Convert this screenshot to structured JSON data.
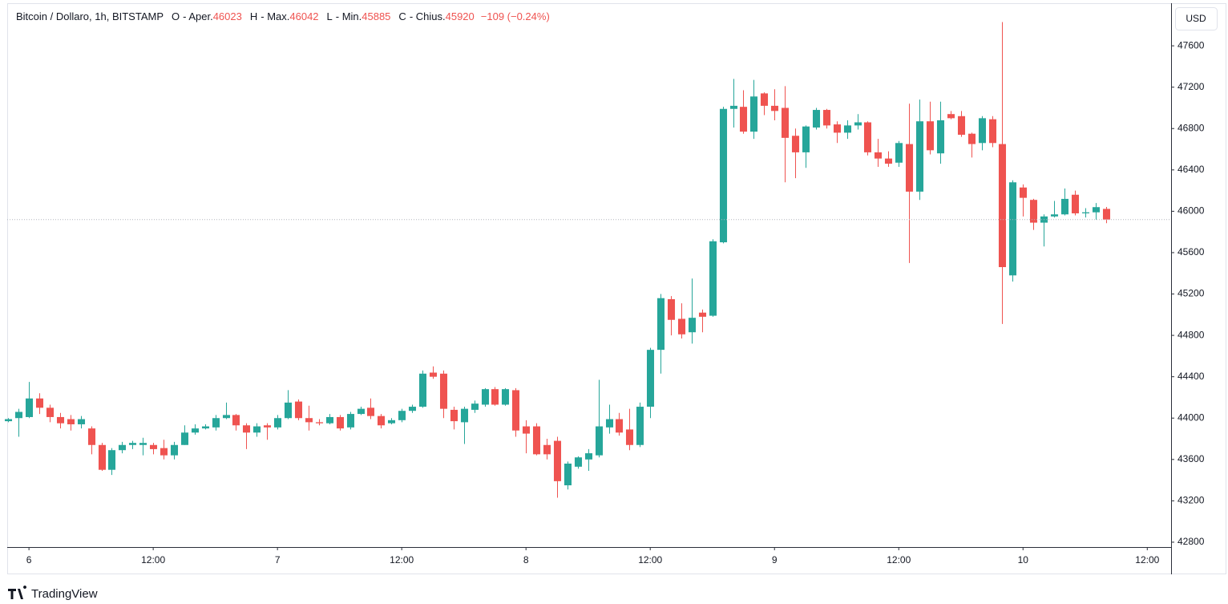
{
  "chart_data": {
    "type": "candlestick",
    "title": "Bitcoin / Dollaro, 1h, BITSTAMP",
    "ohlc_labels": {
      "o": "O",
      "open": "- Aper.",
      "h": "H",
      "high": "- Max.",
      "l": "L",
      "low": "- Min.",
      "c": "C",
      "close": "- Chius."
    },
    "change": "−109 (−0.24%)",
    "currency": "USD",
    "up_color": "#26a69a",
    "down_color": "#ef5350",
    "last_price_line": true,
    "open": [
      43970,
      44000,
      44010,
      44190,
      44100,
      44010,
      43990,
      43940,
      43900,
      43740,
      43500,
      43690,
      43740,
      43740,
      43740,
      43710,
      43640,
      43740,
      43860,
      43900,
      43910,
      44000,
      44030,
      43930,
      43860,
      43930,
      43910,
      44000,
      44160,
      44000,
      43960,
      43950,
      44010,
      43910,
      44040,
      44100,
      44020,
      43950,
      43980,
      44070,
      44110,
      44440,
      44430,
      44080,
      43960,
      44080,
      44130,
      44280,
      44130,
      44270,
      43920,
      43920,
      43740,
      43780,
      43350,
      43530,
      43600,
      43640,
      43910,
      43990,
      43890,
      43740,
      44110,
      44660,
      45150,
      44960,
      44830,
      45020,
      44990,
      45700,
      46990,
      47010,
      46770,
      47140,
      47020,
      47000,
      46730,
      46570,
      46810,
      46980,
      46840,
      46760,
      46830,
      46860,
      46570,
      46510,
      46470,
      46650,
      46190,
      46870,
      46560,
      46940,
      46920,
      46750,
      46660,
      46890,
      46650,
      45380,
      46230,
      46110,
      45890,
      45950,
      45970,
      46160,
      45980,
      45990,
      46023
    ],
    "high": [
      44000,
      44090,
      44350,
      44240,
      44130,
      44050,
      44030,
      44020,
      43920,
      43760,
      43710,
      43770,
      43780,
      43810,
      43760,
      43790,
      43770,
      43930,
      43940,
      43940,
      44030,
      44150,
      44040,
      43950,
      43950,
      43950,
      44030,
      44270,
      44180,
      44120,
      43990,
      44040,
      44030,
      44060,
      44110,
      44190,
      44040,
      44000,
      44090,
      44130,
      44460,
      44500,
      44460,
      44110,
      44110,
      44170,
      44290,
      44300,
      44290,
      44290,
      43980,
      43950,
      43800,
      43820,
      43580,
      43630,
      43700,
      44370,
      44130,
      44050,
      44090,
      44150,
      44680,
      45200,
      45180,
      45110,
      45350,
      45050,
      45730,
      47010,
      47280,
      47170,
      47270,
      47150,
      47180,
      47210,
      46800,
      46830,
      47000,
      46990,
      46870,
      46880,
      46940,
      46870,
      46700,
      46580,
      46680,
      47040,
      47080,
      47060,
      47060,
      46970,
      46970,
      46760,
      46920,
      46920,
      47830,
      46300,
      46260,
      46120,
      45970,
      46100,
      46220,
      46200,
      46030,
      46080,
      46042
    ],
    "low": [
      43960,
      43820,
      44000,
      44040,
      43960,
      43900,
      43880,
      43900,
      43650,
      43490,
      43450,
      43660,
      43700,
      43640,
      43650,
      43600,
      43600,
      43740,
      43840,
      43890,
      43880,
      43990,
      43880,
      43700,
      43820,
      43790,
      43890,
      43990,
      43980,
      43880,
      43930,
      43940,
      43880,
      43890,
      44030,
      43990,
      43900,
      43940,
      43960,
      44050,
      44100,
      44380,
      44000,
      43890,
      43750,
      44050,
      44110,
      44120,
      44120,
      43820,
      43660,
      43640,
      43600,
      43230,
      43310,
      43510,
      43490,
      43620,
      43850,
      43830,
      43690,
      43720,
      44000,
      44430,
      44800,
      44770,
      44720,
      44830,
      44980,
      45690,
      46810,
      46750,
      46700,
      46930,
      46880,
      46280,
      46320,
      46420,
      46790,
      46800,
      46660,
      46700,
      46790,
      46540,
      46430,
      46430,
      46430,
      45500,
      46110,
      46550,
      46460,
      46890,
      46720,
      46520,
      46590,
      46620,
      44910,
      45320,
      45950,
      45820,
      45660,
      45940,
      45960,
      45960,
      45940,
      45920,
      45885
    ],
    "close": [
      43990,
      44060,
      44190,
      44100,
      44010,
      43950,
      43940,
      43990,
      43740,
      43500,
      43690,
      43740,
      43760,
      43760,
      43700,
      43640,
      43740,
      43860,
      43900,
      43920,
      44000,
      44030,
      43930,
      43860,
      43920,
      43910,
      44000,
      44150,
      44000,
      43960,
      43950,
      44010,
      43900,
      44040,
      44090,
      44020,
      43930,
      43980,
      44070,
      44110,
      44430,
      44400,
      44090,
      43970,
      44090,
      44140,
      44280,
      44130,
      44280,
      43880,
      43850,
      43650,
      43650,
      43390,
      43560,
      43620,
      43660,
      43920,
      43990,
      43860,
      43740,
      44110,
      44660,
      45160,
      44950,
      44810,
      44970,
      44980,
      45710,
      46990,
      47020,
      46770,
      47110,
      47020,
      46970,
      46710,
      46570,
      46820,
      46980,
      46830,
      46760,
      46830,
      46860,
      46570,
      46510,
      46460,
      46660,
      46190,
      46870,
      46590,
      46880,
      46900,
      46740,
      46650,
      46900,
      46660,
      45460,
      46280,
      46130,
      45890,
      45950,
      45970,
      46120,
      45980,
      45990,
      46040,
      45920
    ],
    "xlim": [
      -0.1,
      112.3
    ],
    "xticks": [
      {
        "value": 2,
        "label": "6"
      },
      {
        "value": 14,
        "label": "12:00"
      },
      {
        "value": 26,
        "label": "7"
      },
      {
        "value": 38,
        "label": "12:00"
      },
      {
        "value": 50,
        "label": "8"
      },
      {
        "value": 62,
        "label": "12:00"
      },
      {
        "value": 74,
        "label": "9"
      },
      {
        "value": 86,
        "label": "12:00"
      },
      {
        "value": 98,
        "label": "10"
      },
      {
        "value": 110,
        "label": "12:00"
      }
    ],
    "ylim": [
      42753,
      48012
    ],
    "yticks": [
      42800,
      43200,
      43600,
      44000,
      44400,
      44800,
      45200,
      45600,
      46000,
      46400,
      46800,
      47200,
      47600
    ]
  },
  "brand": "TradingView"
}
